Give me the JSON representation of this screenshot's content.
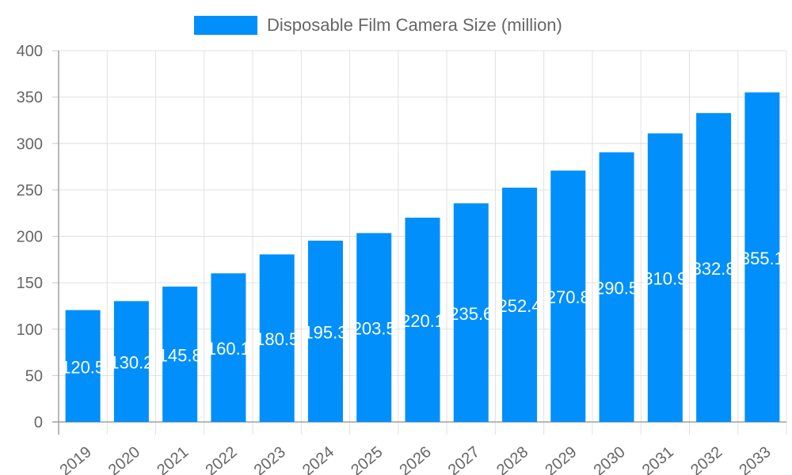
{
  "chart_data": {
    "type": "bar",
    "title": "",
    "xlabel": "",
    "ylabel": "",
    "ylim": [
      0,
      400
    ],
    "yticks": [
      0,
      50,
      100,
      150,
      200,
      250,
      300,
      350,
      400
    ],
    "grid": true,
    "legend_position": "top",
    "categories": [
      "2019",
      "2020",
      "2021",
      "2022",
      "2023",
      "2024",
      "2025",
      "2026",
      "2027",
      "2028",
      "2029",
      "2030",
      "2031",
      "2032",
      "2033"
    ],
    "series": [
      {
        "name": "Disposable Film Camera Size (million)",
        "color": "#008ffb",
        "values": [
          120.5,
          130.2,
          145.8,
          160.1,
          180.5,
          195.3,
          203.5,
          220.1,
          235.6,
          252.4,
          270.8,
          290.5,
          310.9,
          332.8,
          355.1
        ]
      }
    ]
  },
  "legend": {
    "label": "Disposable Film Camera Size (million)",
    "color": "#008ffb"
  }
}
